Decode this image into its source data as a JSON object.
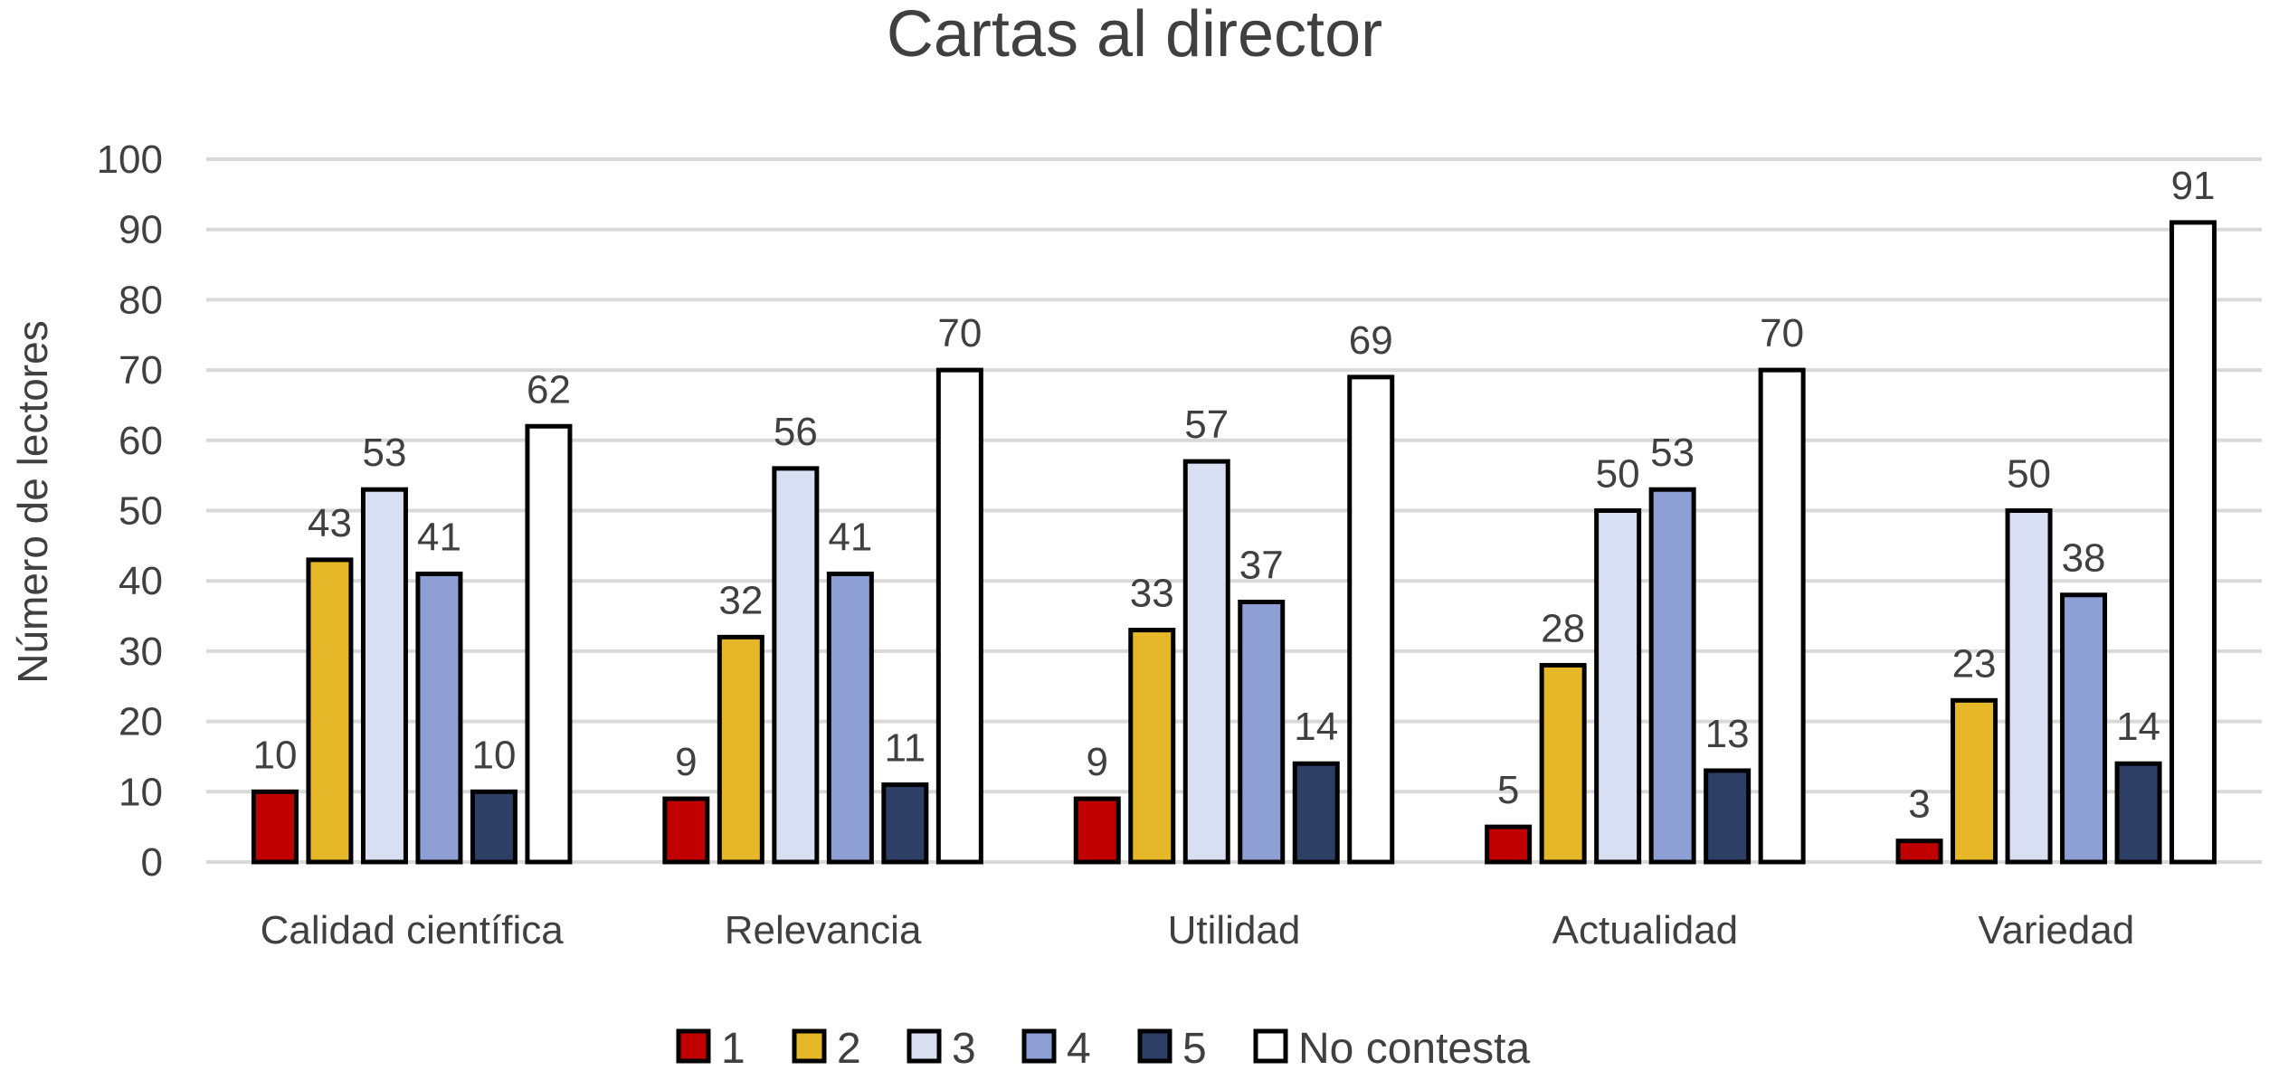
{
  "chart_data": {
    "type": "bar",
    "title": "Cartas al director",
    "xlabel": "",
    "ylabel": "Número de lectores",
    "ylim": [
      0,
      100
    ],
    "yticks": [
      0,
      10,
      20,
      30,
      40,
      50,
      60,
      70,
      80,
      90,
      100
    ],
    "grid": true,
    "legend_position": "bottom",
    "categories": [
      "Calidad científica",
      "Relevancia",
      "Utilidad",
      "Actualidad",
      "Variedad"
    ],
    "series": [
      {
        "name": "1",
        "color": "#c00000",
        "values": [
          10,
          9,
          9,
          5,
          3
        ]
      },
      {
        "name": "2",
        "color": "#e6b729",
        "values": [
          43,
          32,
          33,
          28,
          23
        ]
      },
      {
        "name": "3",
        "color": "#d9dff2",
        "values": [
          53,
          56,
          57,
          50,
          50
        ]
      },
      {
        "name": "4",
        "color": "#8e9fd6",
        "values": [
          41,
          41,
          37,
          53,
          38
        ]
      },
      {
        "name": "5",
        "color": "#2e3f66",
        "values": [
          10,
          11,
          14,
          13,
          14
        ]
      },
      {
        "name": "No contesta",
        "color": "#ffffff",
        "values": [
          62,
          70,
          69,
          70,
          91
        ]
      }
    ]
  }
}
